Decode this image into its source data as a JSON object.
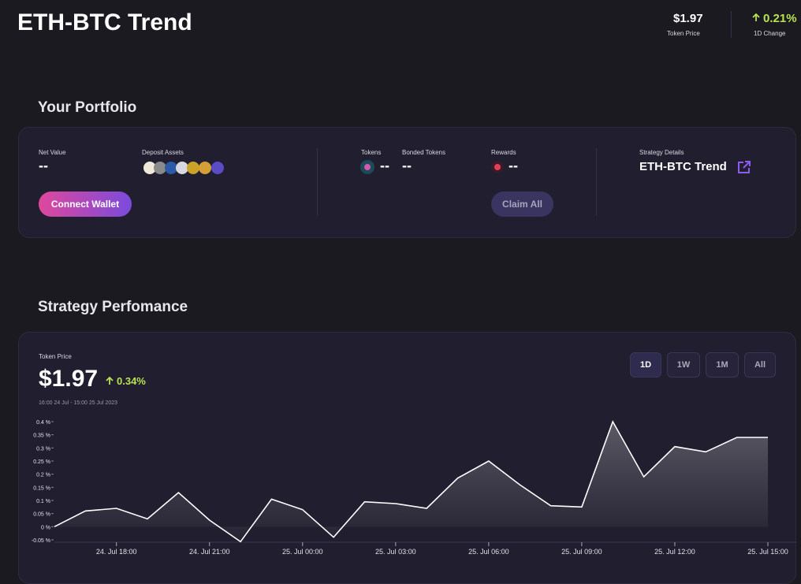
{
  "header": {
    "title": "ETH-BTC Trend",
    "token_price": {
      "value": "$1.97",
      "label": "Token Price"
    },
    "change": {
      "value": "0.21%",
      "label": "1D Change"
    }
  },
  "portfolio": {
    "title": "Your Portfolio",
    "net_value": {
      "label": "Net Value",
      "value": "--"
    },
    "deposit_assets": {
      "label": "Deposit Assets"
    },
    "tokens": {
      "label": "Tokens",
      "value": "--"
    },
    "bonded_tokens": {
      "label": "Bonded Tokens",
      "value": "--"
    },
    "rewards": {
      "label": "Rewards",
      "value": "--"
    },
    "strategy_details": {
      "label": "Strategy Details",
      "value": "ETH-BTC Trend"
    },
    "connect_button": "Connect Wallet",
    "claim_button": "Claim All"
  },
  "performance": {
    "title": "Strategy Perfomance",
    "price_label": "Token Price",
    "price": "$1.97",
    "change": "0.34%",
    "range": "16:00 24 Jul - 15:00 25 Jul 2023",
    "periods": [
      "1D",
      "1W",
      "1M",
      "All"
    ],
    "active_period": "1D"
  },
  "chart_data": {
    "type": "area",
    "categories": [
      null,
      null,
      "24. Jul 18:00",
      null,
      null,
      "24. Jul 21:00",
      null,
      null,
      "25. Jul 00:00",
      null,
      null,
      "25. Jul 03:00",
      null,
      null,
      "25. Jul 06:00",
      null,
      null,
      "25. Jul 09:00",
      null,
      null,
      "25. Jul 12:00",
      null,
      null,
      "25. Jul 15:00"
    ],
    "values": [
      0,
      0.06,
      0.07,
      0.03,
      0.13,
      0.025,
      -0.057,
      0.105,
      0.065,
      -0.04,
      0.095,
      0.088,
      0.07,
      0.185,
      0.25,
      0.16,
      0.08,
      0.075,
      0.4,
      0.19,
      0.305,
      0.285,
      0.34,
      0.34
    ],
    "color": "#ffffff",
    "ylim": [
      -0.05,
      0.4
    ],
    "yticks": [
      {
        "value": -0.05,
        "label": "-0.05 %"
      },
      {
        "value": 0,
        "label": "0 %"
      },
      {
        "value": 0.05,
        "label": "0.05 %"
      },
      {
        "value": 0.1,
        "label": "0.1 %"
      },
      {
        "value": 0.15,
        "label": "0.15 %"
      },
      {
        "value": 0.2,
        "label": "0.2 %"
      },
      {
        "value": 0.25,
        "label": "0.25 %"
      },
      {
        "value": 0.3,
        "label": "0.3 %"
      },
      {
        "value": 0.35,
        "label": "0.35 %"
      },
      {
        "value": 0.4,
        "label": "0.4 %"
      }
    ]
  }
}
